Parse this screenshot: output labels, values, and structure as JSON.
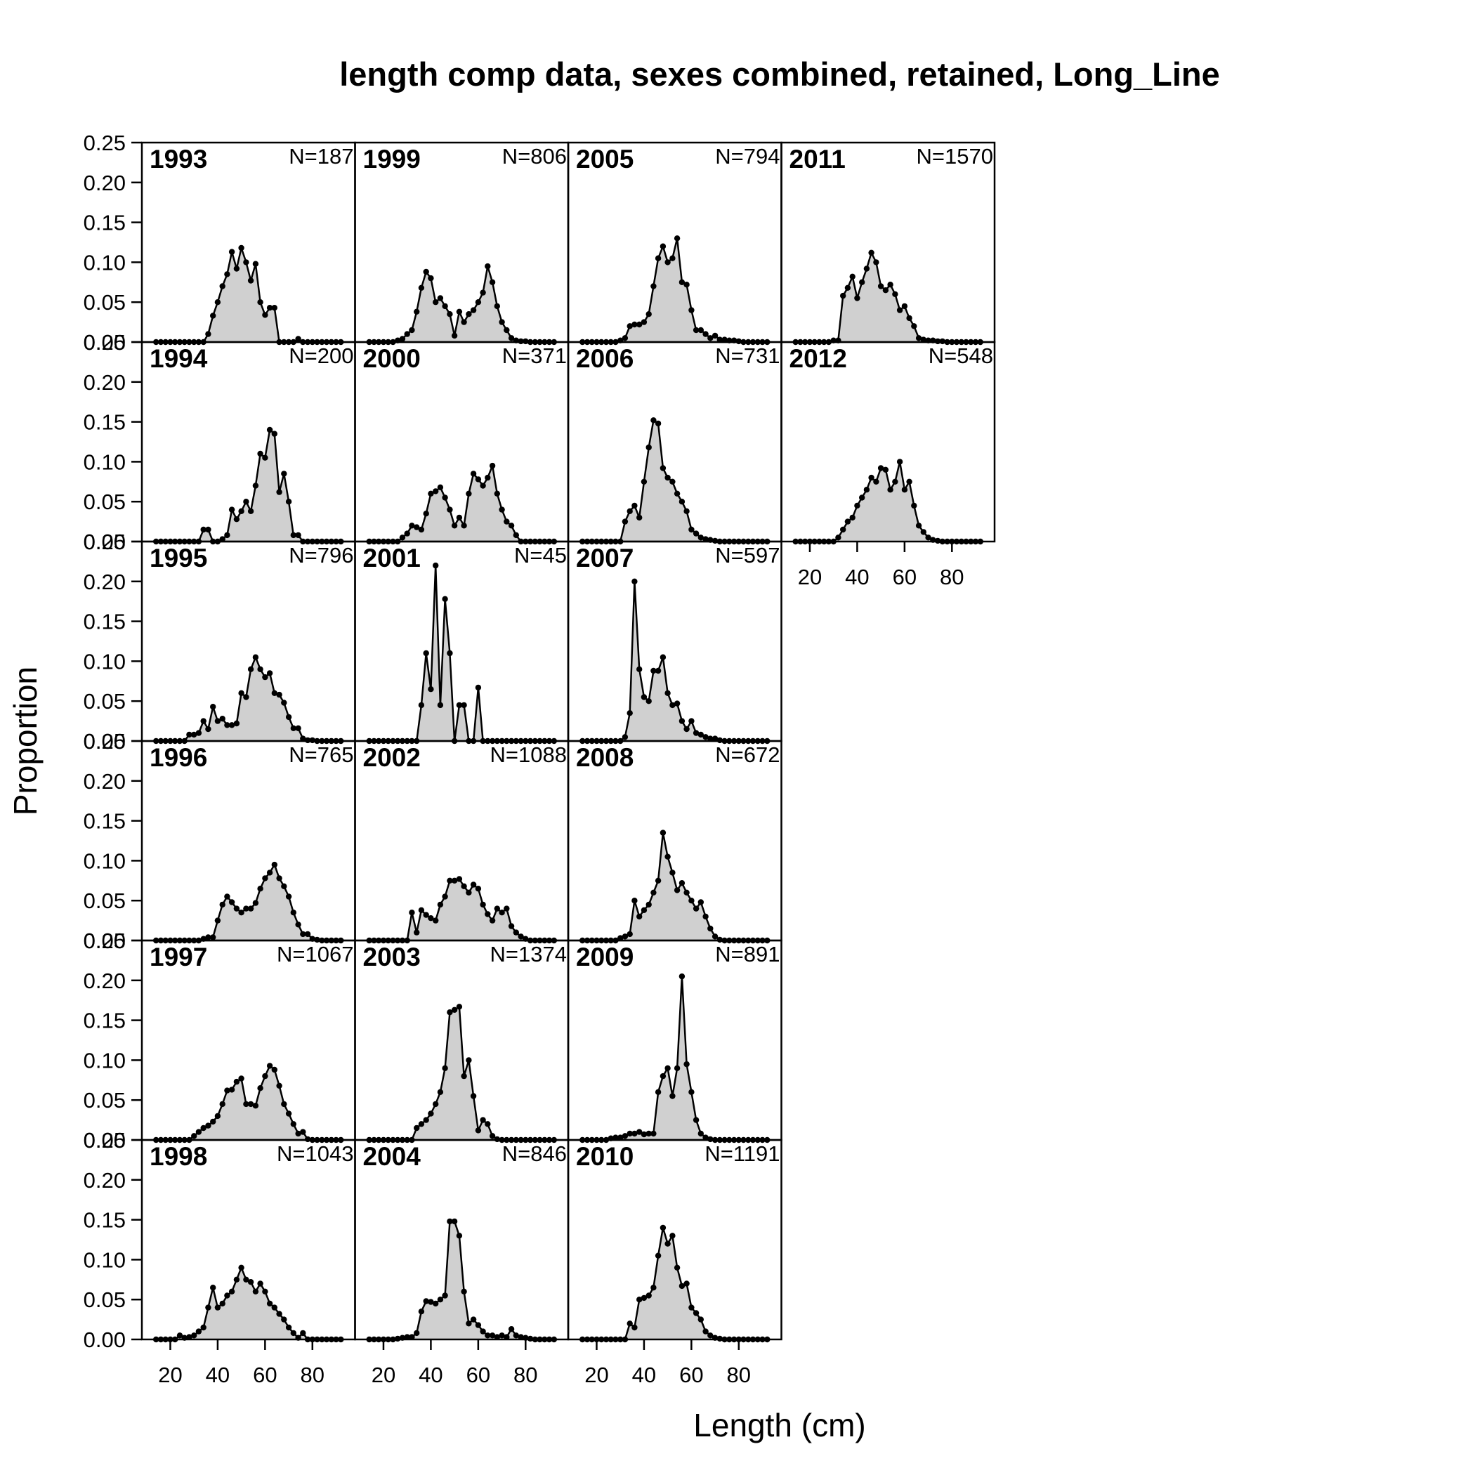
{
  "chart_data": {
    "type": "area",
    "title": "length comp data, sexes combined, retained, Long_Line",
    "xlabel": "Length (cm)",
    "ylabel": "Proportion",
    "xlim": [
      8,
      98
    ],
    "ylim": [
      0,
      0.25
    ],
    "x_ticks": [
      20,
      40,
      60,
      80
    ],
    "x_tick_labels": [
      "20",
      "40",
      "60",
      "80"
    ],
    "y_ticks": [
      0,
      0.05,
      0.1,
      0.15,
      0.2,
      0.25
    ],
    "y_tick_labels": [
      "0.00",
      "0.05",
      "0.10",
      "0.15",
      "0.20",
      "0.25"
    ],
    "layout": "4 columns x 6 rows, filled column-wise; 1993 top-left",
    "x": [
      14,
      16,
      18,
      20,
      22,
      24,
      26,
      28,
      30,
      32,
      34,
      36,
      38,
      40,
      42,
      44,
      46,
      48,
      50,
      52,
      54,
      56,
      58,
      60,
      62,
      64,
      66,
      68,
      70,
      72,
      74,
      76,
      78,
      80,
      82,
      84,
      86,
      88,
      90,
      92
    ],
    "panels": [
      {
        "year": "1993",
        "n": "N=187",
        "values": [
          0,
          0,
          0,
          0,
          0,
          0,
          0,
          0,
          0,
          0,
          0,
          0.01,
          0.033,
          0.05,
          0.07,
          0.085,
          0.113,
          0.092,
          0.118,
          0.1,
          0.077,
          0.098,
          0.05,
          0.034,
          0.043,
          0.043,
          0,
          0,
          0,
          0,
          0.004,
          0,
          0,
          0,
          0,
          0,
          0,
          0,
          0,
          0
        ]
      },
      {
        "year": "1994",
        "n": "N=200",
        "values": [
          0,
          0,
          0,
          0,
          0,
          0,
          0,
          0,
          0,
          0,
          0.015,
          0.015,
          0,
          0,
          0.003,
          0.008,
          0.04,
          0.028,
          0.038,
          0.05,
          0.038,
          0.07,
          0.11,
          0.105,
          0.14,
          0.135,
          0.062,
          0.085,
          0.05,
          0.008,
          0.008,
          0,
          0,
          0,
          0,
          0,
          0,
          0,
          0,
          0
        ]
      },
      {
        "year": "1995",
        "n": "N=796",
        "values": [
          0,
          0,
          0,
          0,
          0,
          0,
          0,
          0.008,
          0.008,
          0.01,
          0.025,
          0.015,
          0.043,
          0.025,
          0.028,
          0.02,
          0.02,
          0.022,
          0.06,
          0.055,
          0.09,
          0.105,
          0.09,
          0.08,
          0.085,
          0.06,
          0.058,
          0.048,
          0.03,
          0.016,
          0.016,
          0.003,
          0.001,
          0.001,
          0,
          0,
          0,
          0,
          0,
          0
        ]
      },
      {
        "year": "1996",
        "n": "N=765",
        "values": [
          0,
          0,
          0,
          0,
          0,
          0,
          0,
          0,
          0,
          0,
          0.002,
          0.004,
          0.004,
          0.025,
          0.045,
          0.055,
          0.048,
          0.04,
          0.035,
          0.04,
          0.04,
          0.047,
          0.065,
          0.078,
          0.085,
          0.095,
          0.078,
          0.068,
          0.055,
          0.035,
          0.02,
          0.008,
          0.008,
          0.002,
          0.001,
          0,
          0,
          0,
          0,
          0
        ]
      },
      {
        "year": "1997",
        "n": "N=1067",
        "values": [
          0,
          0,
          0,
          0,
          0,
          0,
          0,
          0,
          0.005,
          0.01,
          0.015,
          0.018,
          0.023,
          0.03,
          0.045,
          0.062,
          0.063,
          0.073,
          0.077,
          0.045,
          0.045,
          0.043,
          0.065,
          0.08,
          0.093,
          0.088,
          0.068,
          0.045,
          0.033,
          0.02,
          0.008,
          0.01,
          0.001,
          0,
          0,
          0,
          0,
          0,
          0,
          0
        ]
      },
      {
        "year": "1998",
        "n": "N=1043",
        "values": [
          0,
          0,
          0,
          0,
          0,
          0.005,
          0.002,
          0.003,
          0.005,
          0.01,
          0.015,
          0.04,
          0.065,
          0.04,
          0.045,
          0.055,
          0.06,
          0.075,
          0.09,
          0.075,
          0.072,
          0.06,
          0.07,
          0.06,
          0.045,
          0.04,
          0.032,
          0.025,
          0.015,
          0.008,
          0.002,
          0.008,
          0,
          0,
          0,
          0,
          0,
          0,
          0,
          0
        ]
      },
      {
        "year": "1999",
        "n": "N=806",
        "values": [
          0,
          0,
          0,
          0,
          0,
          0,
          0.002,
          0.004,
          0.01,
          0.015,
          0.038,
          0.068,
          0.088,
          0.08,
          0.05,
          0.055,
          0.045,
          0.035,
          0.008,
          0.038,
          0.025,
          0.035,
          0.04,
          0.05,
          0.062,
          0.095,
          0.075,
          0.045,
          0.025,
          0.015,
          0.005,
          0.002,
          0.001,
          0.001,
          0,
          0,
          0,
          0,
          0,
          0
        ]
      },
      {
        "year": "2000",
        "n": "N=371",
        "values": [
          0,
          0,
          0,
          0,
          0,
          0,
          0,
          0.005,
          0.01,
          0.02,
          0.018,
          0.015,
          0.035,
          0.06,
          0.063,
          0.068,
          0.055,
          0.04,
          0.02,
          0.03,
          0.02,
          0.06,
          0.085,
          0.078,
          0.07,
          0.08,
          0.095,
          0.06,
          0.04,
          0.025,
          0.02,
          0.008,
          0,
          0,
          0,
          0,
          0,
          0,
          0,
          0
        ]
      },
      {
        "year": "2001",
        "n": "N=45",
        "values": [
          0,
          0,
          0,
          0,
          0,
          0,
          0,
          0,
          0,
          0,
          0,
          0.045,
          0.11,
          0.065,
          0.22,
          0.045,
          0.178,
          0.11,
          0,
          0.045,
          0.045,
          0,
          0,
          0.067,
          0,
          0,
          0,
          0,
          0,
          0,
          0,
          0,
          0,
          0,
          0,
          0,
          0,
          0,
          0,
          0
        ]
      },
      {
        "year": "2002",
        "n": "N=1088",
        "values": [
          0,
          0,
          0,
          0,
          0,
          0,
          0,
          0,
          0,
          0.035,
          0.01,
          0.038,
          0.032,
          0.028,
          0.025,
          0.045,
          0.055,
          0.075,
          0.075,
          0.077,
          0.068,
          0.06,
          0.07,
          0.065,
          0.045,
          0.033,
          0.025,
          0.04,
          0.035,
          0.04,
          0.018,
          0.01,
          0.005,
          0.002,
          0,
          0,
          0,
          0,
          0,
          0
        ]
      },
      {
        "year": "2003",
        "n": "N=1374",
        "values": [
          0,
          0,
          0,
          0,
          0,
          0,
          0,
          0,
          0,
          0,
          0.015,
          0.02,
          0.025,
          0.033,
          0.045,
          0.06,
          0.09,
          0.16,
          0.163,
          0.167,
          0.08,
          0.1,
          0.055,
          0.012,
          0.025,
          0.02,
          0.005,
          0.001,
          0,
          0,
          0,
          0,
          0,
          0,
          0,
          0,
          0,
          0,
          0,
          0
        ]
      },
      {
        "year": "2004",
        "n": "N=846",
        "values": [
          0,
          0,
          0,
          0,
          0,
          0,
          0.001,
          0.002,
          0.003,
          0.003,
          0.008,
          0.035,
          0.048,
          0.047,
          0.045,
          0.05,
          0.055,
          0.148,
          0.148,
          0.13,
          0.06,
          0.02,
          0.025,
          0.018,
          0.01,
          0.005,
          0.005,
          0.003,
          0.005,
          0.003,
          0.013,
          0.005,
          0.003,
          0.002,
          0.001,
          0,
          0,
          0,
          0,
          0
        ]
      },
      {
        "year": "2005",
        "n": "N=794",
        "values": [
          0,
          0,
          0,
          0,
          0,
          0,
          0,
          0,
          0.002,
          0.005,
          0.02,
          0.022,
          0.022,
          0.025,
          0.035,
          0.07,
          0.105,
          0.12,
          0.1,
          0.105,
          0.13,
          0.075,
          0.072,
          0.04,
          0.015,
          0.015,
          0.01,
          0.005,
          0.008,
          0.003,
          0.003,
          0.002,
          0.002,
          0.001,
          0,
          0,
          0,
          0,
          0,
          0
        ]
      },
      {
        "year": "2006",
        "n": "N=731",
        "values": [
          0,
          0,
          0,
          0,
          0,
          0,
          0,
          0,
          0,
          0.025,
          0.038,
          0.045,
          0.03,
          0.075,
          0.118,
          0.152,
          0.148,
          0.092,
          0.08,
          0.075,
          0.06,
          0.05,
          0.038,
          0.015,
          0.01,
          0.005,
          0.003,
          0.002,
          0.001,
          0,
          0,
          0,
          0,
          0,
          0,
          0,
          0,
          0,
          0,
          0
        ]
      },
      {
        "year": "2007",
        "n": "N=597",
        "values": [
          0,
          0,
          0,
          0,
          0,
          0,
          0,
          0,
          0,
          0.005,
          0.035,
          0.2,
          0.09,
          0.055,
          0.05,
          0.088,
          0.088,
          0.105,
          0.06,
          0.045,
          0.047,
          0.025,
          0.015,
          0.025,
          0.01,
          0.008,
          0.005,
          0.003,
          0.003,
          0.001,
          0,
          0,
          0,
          0,
          0,
          0,
          0,
          0,
          0,
          0
        ]
      },
      {
        "year": "2008",
        "n": "N=672",
        "values": [
          0,
          0,
          0,
          0,
          0,
          0,
          0,
          0,
          0.003,
          0.005,
          0.008,
          0.05,
          0.03,
          0.038,
          0.045,
          0.06,
          0.075,
          0.135,
          0.105,
          0.085,
          0.063,
          0.072,
          0.06,
          0.05,
          0.04,
          0.048,
          0.03,
          0.015,
          0.005,
          0.001,
          0,
          0,
          0,
          0,
          0,
          0,
          0,
          0,
          0,
          0
        ]
      },
      {
        "year": "2009",
        "n": "N=891",
        "values": [
          0,
          0,
          0,
          0,
          0,
          0,
          0.002,
          0.003,
          0.003,
          0.005,
          0.008,
          0.008,
          0.01,
          0.007,
          0.008,
          0.008,
          0.06,
          0.08,
          0.09,
          0.055,
          0.09,
          0.205,
          0.095,
          0.06,
          0.025,
          0.008,
          0.003,
          0.001,
          0,
          0,
          0,
          0,
          0,
          0,
          0,
          0,
          0,
          0,
          0,
          0
        ]
      },
      {
        "year": "2010",
        "n": "N=1191",
        "values": [
          0,
          0,
          0,
          0,
          0,
          0,
          0,
          0,
          0,
          0,
          0.02,
          0.015,
          0.05,
          0.052,
          0.055,
          0.065,
          0.105,
          0.14,
          0.12,
          0.13,
          0.09,
          0.067,
          0.07,
          0.04,
          0.033,
          0.025,
          0.01,
          0.005,
          0.002,
          0.001,
          0,
          0,
          0,
          0,
          0,
          0,
          0,
          0,
          0,
          0
        ]
      },
      {
        "year": "2011",
        "n": "N=1570",
        "values": [
          0,
          0,
          0,
          0,
          0,
          0,
          0,
          0,
          0.002,
          0.002,
          0.058,
          0.068,
          0.082,
          0.055,
          0.075,
          0.092,
          0.112,
          0.1,
          0.07,
          0.065,
          0.072,
          0.06,
          0.04,
          0.045,
          0.03,
          0.02,
          0.005,
          0.003,
          0.002,
          0.002,
          0.001,
          0.001,
          0,
          0,
          0,
          0,
          0,
          0,
          0,
          0
        ]
      },
      {
        "year": "2012",
        "n": "N=548",
        "values": [
          0,
          0,
          0,
          0,
          0,
          0,
          0,
          0,
          0,
          0.005,
          0.015,
          0.025,
          0.03,
          0.045,
          0.055,
          0.065,
          0.08,
          0.075,
          0.092,
          0.09,
          0.065,
          0.075,
          0.1,
          0.065,
          0.075,
          0.045,
          0.02,
          0.012,
          0.005,
          0.002,
          0.001,
          0,
          0,
          0,
          0,
          0,
          0,
          0,
          0,
          0
        ]
      }
    ]
  }
}
